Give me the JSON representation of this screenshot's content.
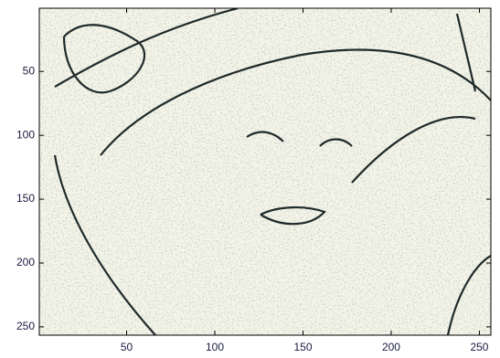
{
  "chart_data": {
    "type": "image",
    "xlim": [
      0.5,
      256.5
    ],
    "ylim": [
      0.5,
      256.5
    ],
    "ydir": "reverse",
    "xticks": [
      50,
      100,
      150,
      200,
      250
    ],
    "yticks": [
      50,
      100,
      150,
      200,
      250
    ]
  }
}
